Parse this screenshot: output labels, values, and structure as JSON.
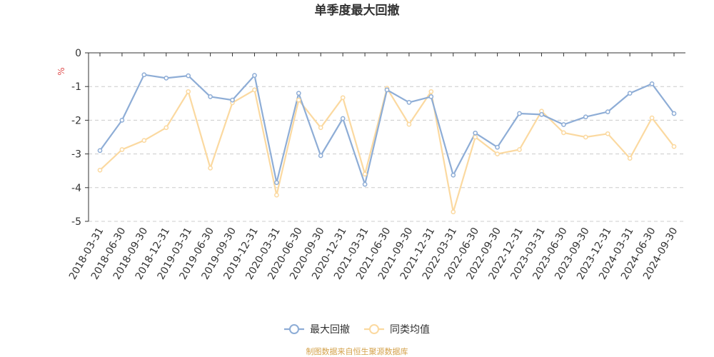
{
  "chart_data": {
    "type": "line",
    "title": "单季度最大回撤",
    "ylabel": "%",
    "xlabel": "",
    "ylim": [
      -5,
      0
    ],
    "yticks": [
      0,
      -1,
      -2,
      -3,
      -4,
      -5
    ],
    "grid": true,
    "legend_position": "bottom",
    "categories": [
      "2018-03-31",
      "2018-06-30",
      "2018-09-30",
      "2018-12-31",
      "2019-03-31",
      "2019-06-30",
      "2019-09-30",
      "2019-12-31",
      "2020-03-31",
      "2020-06-30",
      "2020-09-30",
      "2020-12-31",
      "2021-03-31",
      "2021-06-30",
      "2021-09-30",
      "2021-12-31",
      "2022-03-31",
      "2022-06-30",
      "2022-09-30",
      "2022-12-31",
      "2023-03-31",
      "2023-06-30",
      "2023-09-30",
      "2023-12-31",
      "2024-03-31",
      "2024-06-30",
      "2024-09-30"
    ],
    "series": [
      {
        "name": "最大回撤",
        "color": "#8eadd6",
        "values": [
          -2.9,
          -2.0,
          -0.65,
          -0.75,
          -0.68,
          -1.3,
          -1.4,
          -0.67,
          -3.85,
          -1.2,
          -3.05,
          -1.95,
          -3.9,
          -1.1,
          -1.47,
          -1.3,
          -3.63,
          -2.38,
          -2.8,
          -1.8,
          -1.83,
          -2.13,
          -1.9,
          -1.75,
          -1.2,
          -0.92,
          -1.8
        ]
      },
      {
        "name": "同类均值",
        "color": "#fbd9a0",
        "values": [
          -3.48,
          -2.87,
          -2.6,
          -2.22,
          -1.15,
          -3.42,
          -1.48,
          -1.1,
          -4.22,
          -1.4,
          -2.22,
          -1.33,
          -3.6,
          -1.05,
          -2.12,
          -1.15,
          -4.72,
          -2.5,
          -3.0,
          -2.87,
          -1.73,
          -2.37,
          -2.5,
          -2.4,
          -3.13,
          -1.93,
          -2.78
        ]
      }
    ],
    "source": "制图数据来自恒生聚源数据库"
  }
}
